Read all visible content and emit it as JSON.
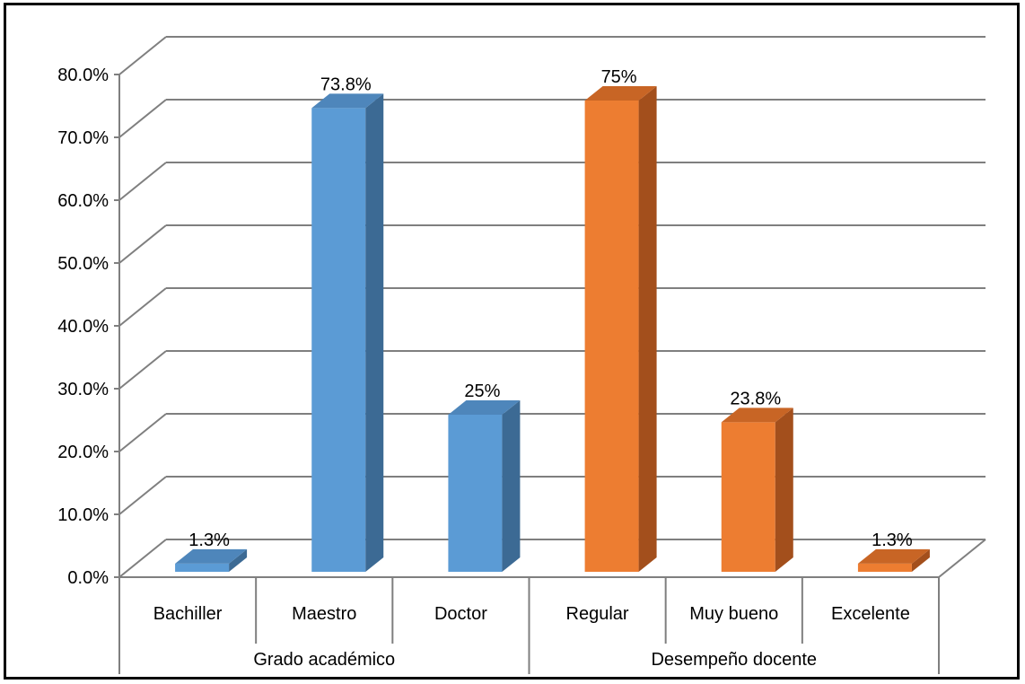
{
  "chart_data": {
    "type": "bar",
    "title": "",
    "xlabel": "",
    "ylabel": "",
    "ylim": [
      0,
      80
    ],
    "y_ticks": [
      "0.0%",
      "10.0%",
      "20.0%",
      "30.0%",
      "40.0%",
      "50.0%",
      "60.0%",
      "70.0%",
      "80.0%"
    ],
    "grid": true,
    "style": "3d-column",
    "groups": [
      {
        "label": "Grado académico",
        "color": "#5b9bd5",
        "side_color": "#3c6a94",
        "top_color": "#4e86bb",
        "categories": [
          "Bachiller",
          "Maestro",
          "Doctor"
        ],
        "values": [
          1.3,
          73.8,
          25
        ],
        "labels": [
          "1.3%",
          "73.8%",
          "25%"
        ]
      },
      {
        "label": "Desempeño docente",
        "color": "#ed7d31",
        "side_color": "#a34f1c",
        "top_color": "#c86525",
        "categories": [
          "Regular",
          "Muy bueno",
          "Excelente"
        ],
        "values": [
          75,
          23.8,
          1.3
        ],
        "labels": [
          "75%",
          "23.8%",
          "1.3%"
        ]
      }
    ]
  }
}
